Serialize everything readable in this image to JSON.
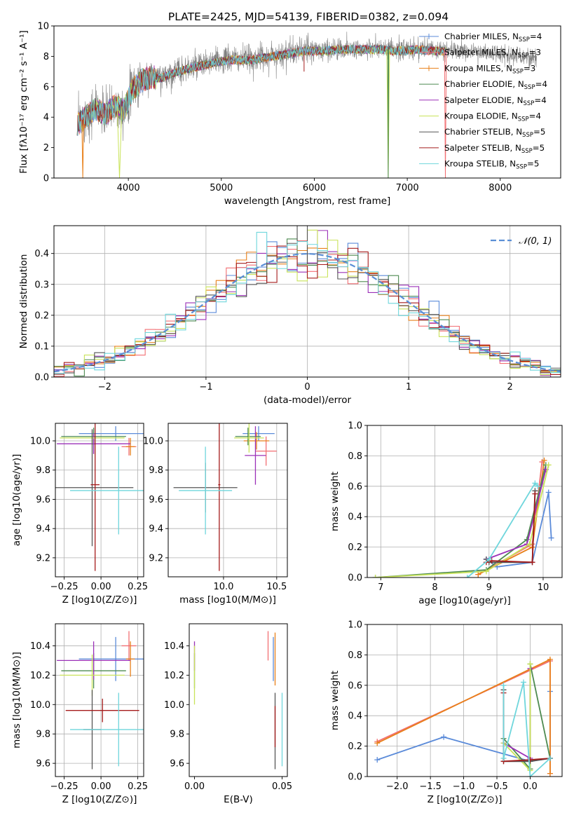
{
  "title": "PLATE=2425, MJD=54139, FIBERID=0382, z=0.094",
  "colors": {
    "Chabrier MILES": "#5b8bd9",
    "Salpeter MILES": "#f26f73",
    "Kroupa MILES": "#e8801a",
    "Chabrier ELODIE": "#4d8a50",
    "Salpeter ELODIE": "#9b30b8",
    "Kroupa ELODIE": "#c9e35a",
    "Chabrier STELIB": "#555555",
    "Salpeter STELIB": "#a51b1b",
    "Kroupa STELIB": "#6fd6dc",
    "data": "#808080",
    "normal": "#5b8fd6",
    "grid": "#b0b0b0"
  },
  "chart_data": [
    {
      "id": "spectrum",
      "type": "line",
      "title": "PLATE=2425, MJD=54139, FIBERID=0382, z=0.094",
      "xlabel": "wavelength [Angstrom, rest frame]",
      "ylabel": "Flux [fλ10⁻¹⁷ erg cm⁻² s⁻¹ A⁻¹]",
      "xlim": [
        3200,
        8650
      ],
      "ylim": [
        0,
        10
      ],
      "xticks": [
        4000,
        5000,
        6000,
        7000,
        8000
      ],
      "yticks": [
        0,
        2,
        4,
        6,
        8,
        10
      ],
      "grid": false,
      "legend_position": "top-right",
      "legend": [
        "Chabrier MILES, N_SSP=4",
        "Salpeter MILES, N_SSP=3",
        "Kroupa MILES, N_SSP=3",
        "Chabrier ELODIE, N_SSP=4",
        "Salpeter ELODIE, N_SSP=4",
        "Kroupa ELODIE, N_SSP=4",
        "Chabrier STELIB, N_SSP=5",
        "Salpeter STELIB, N_SSP=5",
        "Kroupa STELIB, N_SSP=5"
      ],
      "data_range": [
        3460,
        8390
      ],
      "continuum": {
        "x": [
          3460,
          3550,
          3650,
          3750,
          3850,
          3950,
          4050,
          4150,
          4250,
          4350,
          4500,
          4700,
          4900,
          5100,
          5300,
          5500,
          5700,
          5900,
          6100,
          6300,
          6500,
          6700,
          6900,
          7100,
          7300,
          7500,
          7700,
          7900,
          8100,
          8390
        ],
        "y": [
          3.6,
          4.1,
          4.6,
          4.2,
          4.8,
          4.5,
          5.9,
          6.5,
          6.7,
          6.6,
          7.0,
          7.3,
          7.6,
          7.8,
          7.8,
          8.0,
          8.2,
          8.4,
          8.4,
          8.5,
          8.5,
          8.5,
          8.4,
          8.5,
          8.4,
          8.4,
          8.3,
          8.2,
          8.1,
          7.9
        ]
      },
      "model_range": [
        3450,
        7420
      ],
      "dips": [
        {
          "series": "Kroupa MILES",
          "x": [
            3500,
            3520
          ],
          "y": 0
        },
        {
          "series": "Salpeter MILES",
          "x": [
            7400,
            7420
          ],
          "y": 0
        },
        {
          "series": "Kroupa ELODIE",
          "x": [
            3880,
            3930
          ],
          "y": 0
        },
        {
          "series": "Kroupa ELODIE",
          "x": [
            6780,
            6810
          ],
          "y": 0
        },
        {
          "series": "Chabrier ELODIE",
          "x": [
            6790,
            6800
          ],
          "y": 0
        },
        {
          "series": "Salpeter STELIB",
          "x": [
            5890,
            5890
          ],
          "y": 7.0
        }
      ]
    },
    {
      "id": "residuals",
      "type": "histogram",
      "xlabel": "(data-model)/error",
      "ylabel": "Normed distribution",
      "xlim": [
        -2.5,
        2.5
      ],
      "ylim": [
        0,
        0.49
      ],
      "xticks": [
        -2,
        -1,
        0,
        1,
        2
      ],
      "yticks": [
        0.0,
        0.1,
        0.2,
        0.3,
        0.4
      ],
      "grid": true,
      "legend_position": "top-right",
      "legend": [
        "𝒩(0, 1)"
      ],
      "bin_width": 0.1,
      "bin_start": -2.5,
      "normal_curve": {
        "mean": 0,
        "sigma": 1
      }
    },
    {
      "id": "age_vs_Z",
      "type": "errorbar",
      "xlabel": "Z [log10(Z/Z⊙)]",
      "ylabel": "age  [log10(age/yr)]",
      "xlim": [
        -0.31,
        0.29
      ],
      "ylim": [
        9.07,
        10.12
      ],
      "xticks": [
        -0.25,
        0.0,
        0.25
      ],
      "xticklabels": [
        "−0.25",
        "0.00",
        "0.25"
      ],
      "yticks": [
        9.2,
        9.4,
        9.6,
        9.8,
        10.0
      ],
      "grid": true,
      "points": [
        {
          "series": "Chabrier MILES",
          "x": 0.1,
          "xerr": 0.25,
          "y": 10.05,
          "yerr": 0.05
        },
        {
          "series": "Salpeter MILES",
          "x": 0.19,
          "xerr": 0.05,
          "y": 9.96,
          "yerr": 0.06
        },
        {
          "series": "Kroupa MILES",
          "x": 0.2,
          "xerr": 0.03,
          "y": 9.96,
          "yerr": 0.06
        },
        {
          "series": "Chabrier ELODIE",
          "x": -0.05,
          "xerr": 0.22,
          "y": 10.03,
          "yerr": 0.06
        },
        {
          "series": "Salpeter ELODIE",
          "x": -0.05,
          "xerr": 0.25,
          "y": 9.98,
          "yerr": 0.07
        },
        {
          "series": "Kroupa ELODIE",
          "x": -0.06,
          "xerr": 0.22,
          "y": 10.02,
          "yerr": 0.05
        },
        {
          "series": "Chabrier STELIB",
          "x": -0.06,
          "xerr": 0.28,
          "y": 9.68,
          "yerr": 0.4
        },
        {
          "series": "Salpeter STELIB",
          "x": -0.04,
          "xerr": 0.03,
          "y": 9.7,
          "yerr": 0.59
        },
        {
          "series": "Kroupa STELIB",
          "x": 0.12,
          "xerr": 0.33,
          "y": 9.66,
          "yerr": 0.3
        }
      ]
    },
    {
      "id": "age_vs_mass",
      "type": "errorbar",
      "xlabel": "mass [log10(M/M⊙)]",
      "xlim": [
        9.48,
        10.6
      ],
      "ylim": [
        9.07,
        10.12
      ],
      "xticks": [
        10.0,
        10.5
      ],
      "xticklabels": [
        "10.0",
        "10.5"
      ],
      "yticks": [
        9.2,
        9.4,
        9.6,
        9.8,
        10.0
      ],
      "grid": true,
      "points": [
        {
          "series": "Chabrier MILES",
          "x": 10.33,
          "xerr": 0.15,
          "y": 10.05,
          "yerr": 0.05
        },
        {
          "series": "Salpeter MILES",
          "x": 10.4,
          "xerr": 0.1,
          "y": 9.93,
          "yerr": 0.1
        },
        {
          "series": "Kroupa MILES",
          "x": 10.31,
          "xerr": 0.12,
          "y": 10.0,
          "yerr": 0.06
        },
        {
          "series": "Chabrier ELODIE",
          "x": 10.23,
          "xerr": 0.12,
          "y": 10.03,
          "yerr": 0.06
        },
        {
          "series": "Salpeter ELODIE",
          "x": 10.3,
          "xerr": 0.1,
          "y": 9.9,
          "yerr": 0.2
        },
        {
          "series": "Kroupa ELODIE",
          "x": 10.24,
          "xerr": 0.14,
          "y": 10.02,
          "yerr": 0.1
        },
        {
          "series": "Chabrier STELIB",
          "x": 9.83,
          "xerr": 0.3,
          "y": 9.68,
          "yerr": 0.17
        },
        {
          "series": "Salpeter STELIB",
          "x": 9.96,
          "xerr": 0.01,
          "y": 9.7,
          "yerr": 0.59
        },
        {
          "series": "Kroupa STELIB",
          "x": 9.83,
          "xerr": 0.25,
          "y": 9.66,
          "yerr": 0.3
        }
      ]
    },
    {
      "id": "weight_vs_age",
      "type": "line",
      "xlabel": "age  [log10(age/yr)]",
      "ylabel": "mass weight",
      "xlim": [
        6.75,
        10.35
      ],
      "ylim": [
        0,
        1.0
      ],
      "xticks": [
        7,
        8,
        9,
        10
      ],
      "yticks": [
        0.0,
        0.2,
        0.4,
        0.6,
        0.8,
        1.0
      ],
      "grid": true,
      "series": [
        {
          "name": "Chabrier MILES",
          "x": [
            8.95,
            9.15,
            9.8,
            10.1,
            10.15
          ],
          "y": [
            0.12,
            0.07,
            0.1,
            0.56,
            0.26
          ]
        },
        {
          "name": "Salpeter MILES",
          "x": [
            8.8,
            9.8,
            9.98
          ],
          "y": [
            0.02,
            0.22,
            0.76
          ]
        },
        {
          "name": "Kroupa MILES",
          "x": [
            8.8,
            9.8,
            10.02
          ],
          "y": [
            0.02,
            0.2,
            0.77
          ]
        },
        {
          "name": "Chabrier ELODIE",
          "x": [
            6.9,
            8.95,
            9.7,
            10.05
          ],
          "y": [
            0.0,
            0.05,
            0.25,
            0.74
          ]
        },
        {
          "name": "Salpeter ELODIE",
          "x": [
            8.95,
            9.7,
            10.05
          ],
          "y": [
            0.12,
            0.22,
            0.71
          ]
        },
        {
          "name": "Kroupa ELODIE",
          "x": [
            6.9,
            8.95,
            9.75,
            10.1
          ],
          "y": [
            0.0,
            0.04,
            0.22,
            0.74
          ]
        },
        {
          "name": "Chabrier STELIB",
          "x": [
            8.95,
            9.0,
            9.8,
            9.85
          ],
          "y": [
            0.12,
            0.1,
            0.1,
            0.57
          ]
        },
        {
          "name": "Salpeter STELIB",
          "x": [
            8.95,
            9.05,
            9.8,
            9.85
          ],
          "y": [
            0.1,
            0.11,
            0.1,
            0.55
          ]
        },
        {
          "name": "Kroupa STELIB",
          "x": [
            8.6,
            9.0,
            9.85,
            9.9
          ],
          "y": [
            0.0,
            0.12,
            0.62,
            0.6
          ]
        }
      ]
    },
    {
      "id": "mass_vs_Z",
      "type": "errorbar",
      "xlabel": "Z [log10(Z/Z⊙)]",
      "ylabel": "mass [log10(M/M⊙)]",
      "xlim": [
        -0.31,
        0.29
      ],
      "ylim": [
        9.51,
        10.55
      ],
      "xticks": [
        -0.25,
        0.0,
        0.25
      ],
      "xticklabels": [
        "−0.25",
        "0.00",
        "0.25"
      ],
      "yticks": [
        9.6,
        9.8,
        10.0,
        10.2,
        10.4
      ],
      "grid": true,
      "points": [
        {
          "series": "Chabrier MILES",
          "x": 0.1,
          "xerr": 0.25,
          "y": 10.31,
          "yerr": 0.15
        },
        {
          "series": "Salpeter MILES",
          "x": 0.19,
          "xerr": 0.05,
          "y": 10.4,
          "yerr": 0.1
        },
        {
          "series": "Kroupa MILES",
          "x": 0.2,
          "xerr": 0.03,
          "y": 10.31,
          "yerr": 0.12
        },
        {
          "series": "Chabrier ELODIE",
          "x": -0.05,
          "xerr": 0.22,
          "y": 10.23,
          "yerr": 0.12
        },
        {
          "series": "Salpeter ELODIE",
          "x": -0.05,
          "xerr": 0.25,
          "y": 10.3,
          "yerr": 0.13
        },
        {
          "series": "Kroupa ELODIE",
          "x": -0.06,
          "xerr": 0.22,
          "y": 10.2,
          "yerr": 0.14
        },
        {
          "series": "Chabrier STELIB",
          "x": -0.06,
          "xerr": 0.06,
          "y": 9.83,
          "yerr": 0.27
        },
        {
          "series": "Salpeter STELIB",
          "x": 0.01,
          "xerr": 0.25,
          "y": 9.96,
          "yerr": 0.08
        },
        {
          "series": "Kroupa STELIB",
          "x": 0.12,
          "xerr": 0.33,
          "y": 9.83,
          "yerr": 0.25
        }
      ]
    },
    {
      "id": "mass_vs_ebv",
      "type": "errorbar",
      "xlabel": "E(B-V)",
      "xlim": [
        -0.003,
        0.053
      ],
      "ylim": [
        9.51,
        10.55
      ],
      "xticks": [
        0.0,
        0.05
      ],
      "xticklabels": [
        "0.00",
        "0.05"
      ],
      "yticks": [
        9.6,
        9.8,
        10.0,
        10.2,
        10.4
      ],
      "grid": false,
      "points": [
        {
          "series": "Chabrier MILES",
          "x": 0.045,
          "xerr": 0,
          "y": 10.31,
          "yerr": 0.15
        },
        {
          "series": "Salpeter MILES",
          "x": 0.042,
          "xerr": 0,
          "y": 10.4,
          "yerr": 0.1
        },
        {
          "series": "Kroupa MILES",
          "x": 0.046,
          "xerr": 0,
          "y": 10.31,
          "yerr": 0.18
        },
        {
          "series": "Chabrier ELODIE",
          "x": 0.0,
          "xerr": 0,
          "y": 10.23,
          "yerr": 0.12
        },
        {
          "series": "Salpeter ELODIE",
          "x": 0.0,
          "xerr": 0,
          "y": 10.33,
          "yerr": 0.1
        },
        {
          "series": "Kroupa ELODIE",
          "x": 0.0,
          "xerr": 0,
          "y": 10.2,
          "yerr": 0.2
        },
        {
          "series": "Chabrier STELIB",
          "x": 0.046,
          "xerr": 0,
          "y": 9.82,
          "yerr": 0.26
        },
        {
          "series": "Salpeter STELIB",
          "x": 0.046,
          "xerr": 0,
          "y": 9.85,
          "yerr": 0.14
        },
        {
          "series": "Kroupa STELIB",
          "x": 0.05,
          "xerr": 0,
          "y": 9.83,
          "yerr": 0.25
        }
      ]
    },
    {
      "id": "weight_vs_Z",
      "type": "line",
      "xlabel": "Z [log10(Z/Z⊙)]",
      "ylabel": "mass weight",
      "xlim": [
        -2.45,
        0.48
      ],
      "ylim": [
        0,
        1.0
      ],
      "xticks": [
        -2.0,
        -1.5,
        -1.0,
        -0.5,
        0.0
      ],
      "xticklabels": [
        "−2.0",
        "−1.5",
        "−1.0",
        "−0.5",
        "0.0"
      ],
      "yticks": [
        0.0,
        0.2,
        0.4,
        0.6,
        0.8,
        1.0
      ],
      "grid": true,
      "series": [
        {
          "name": "Chabrier MILES",
          "x": [
            -2.3,
            -1.3,
            0.0,
            0.3,
            0.3
          ],
          "y": [
            0.11,
            0.26,
            0.1,
            0.12,
            0.56
          ]
        },
        {
          "name": "Salpeter MILES",
          "x": [
            -2.3,
            0.3,
            0.3
          ],
          "y": [
            0.23,
            0.76,
            0.02
          ]
        },
        {
          "name": "Kroupa MILES",
          "x": [
            -2.3,
            0.3,
            0.3
          ],
          "y": [
            0.22,
            0.77,
            0.02
          ]
        },
        {
          "name": "Chabrier ELODIE",
          "x": [
            -0.4,
            0.0,
            0.0,
            0.3
          ],
          "y": [
            0.25,
            0.05,
            0.74,
            0.12
          ]
        },
        {
          "name": "Salpeter ELODIE",
          "x": [
            -0.4,
            0.0,
            0.0
          ],
          "y": [
            0.22,
            0.12,
            0.71
          ]
        },
        {
          "name": "Kroupa ELODIE",
          "x": [
            -0.4,
            0.0,
            0.0
          ],
          "y": [
            0.22,
            0.04,
            0.74
          ]
        },
        {
          "name": "Chabrier STELIB",
          "x": [
            -0.4,
            -0.4,
            0.0,
            0.3
          ],
          "y": [
            0.57,
            0.1,
            0.1,
            0.12
          ]
        },
        {
          "name": "Salpeter STELIB",
          "x": [
            -0.4,
            -0.4,
            0.0,
            0.3
          ],
          "y": [
            0.55,
            0.1,
            0.11,
            0.12
          ]
        },
        {
          "name": "Kroupa STELIB",
          "x": [
            -0.4,
            -0.4,
            -0.1,
            0.0,
            0.3
          ],
          "y": [
            0.6,
            0.12,
            0.62,
            0.0,
            0.12
          ]
        }
      ]
    }
  ]
}
